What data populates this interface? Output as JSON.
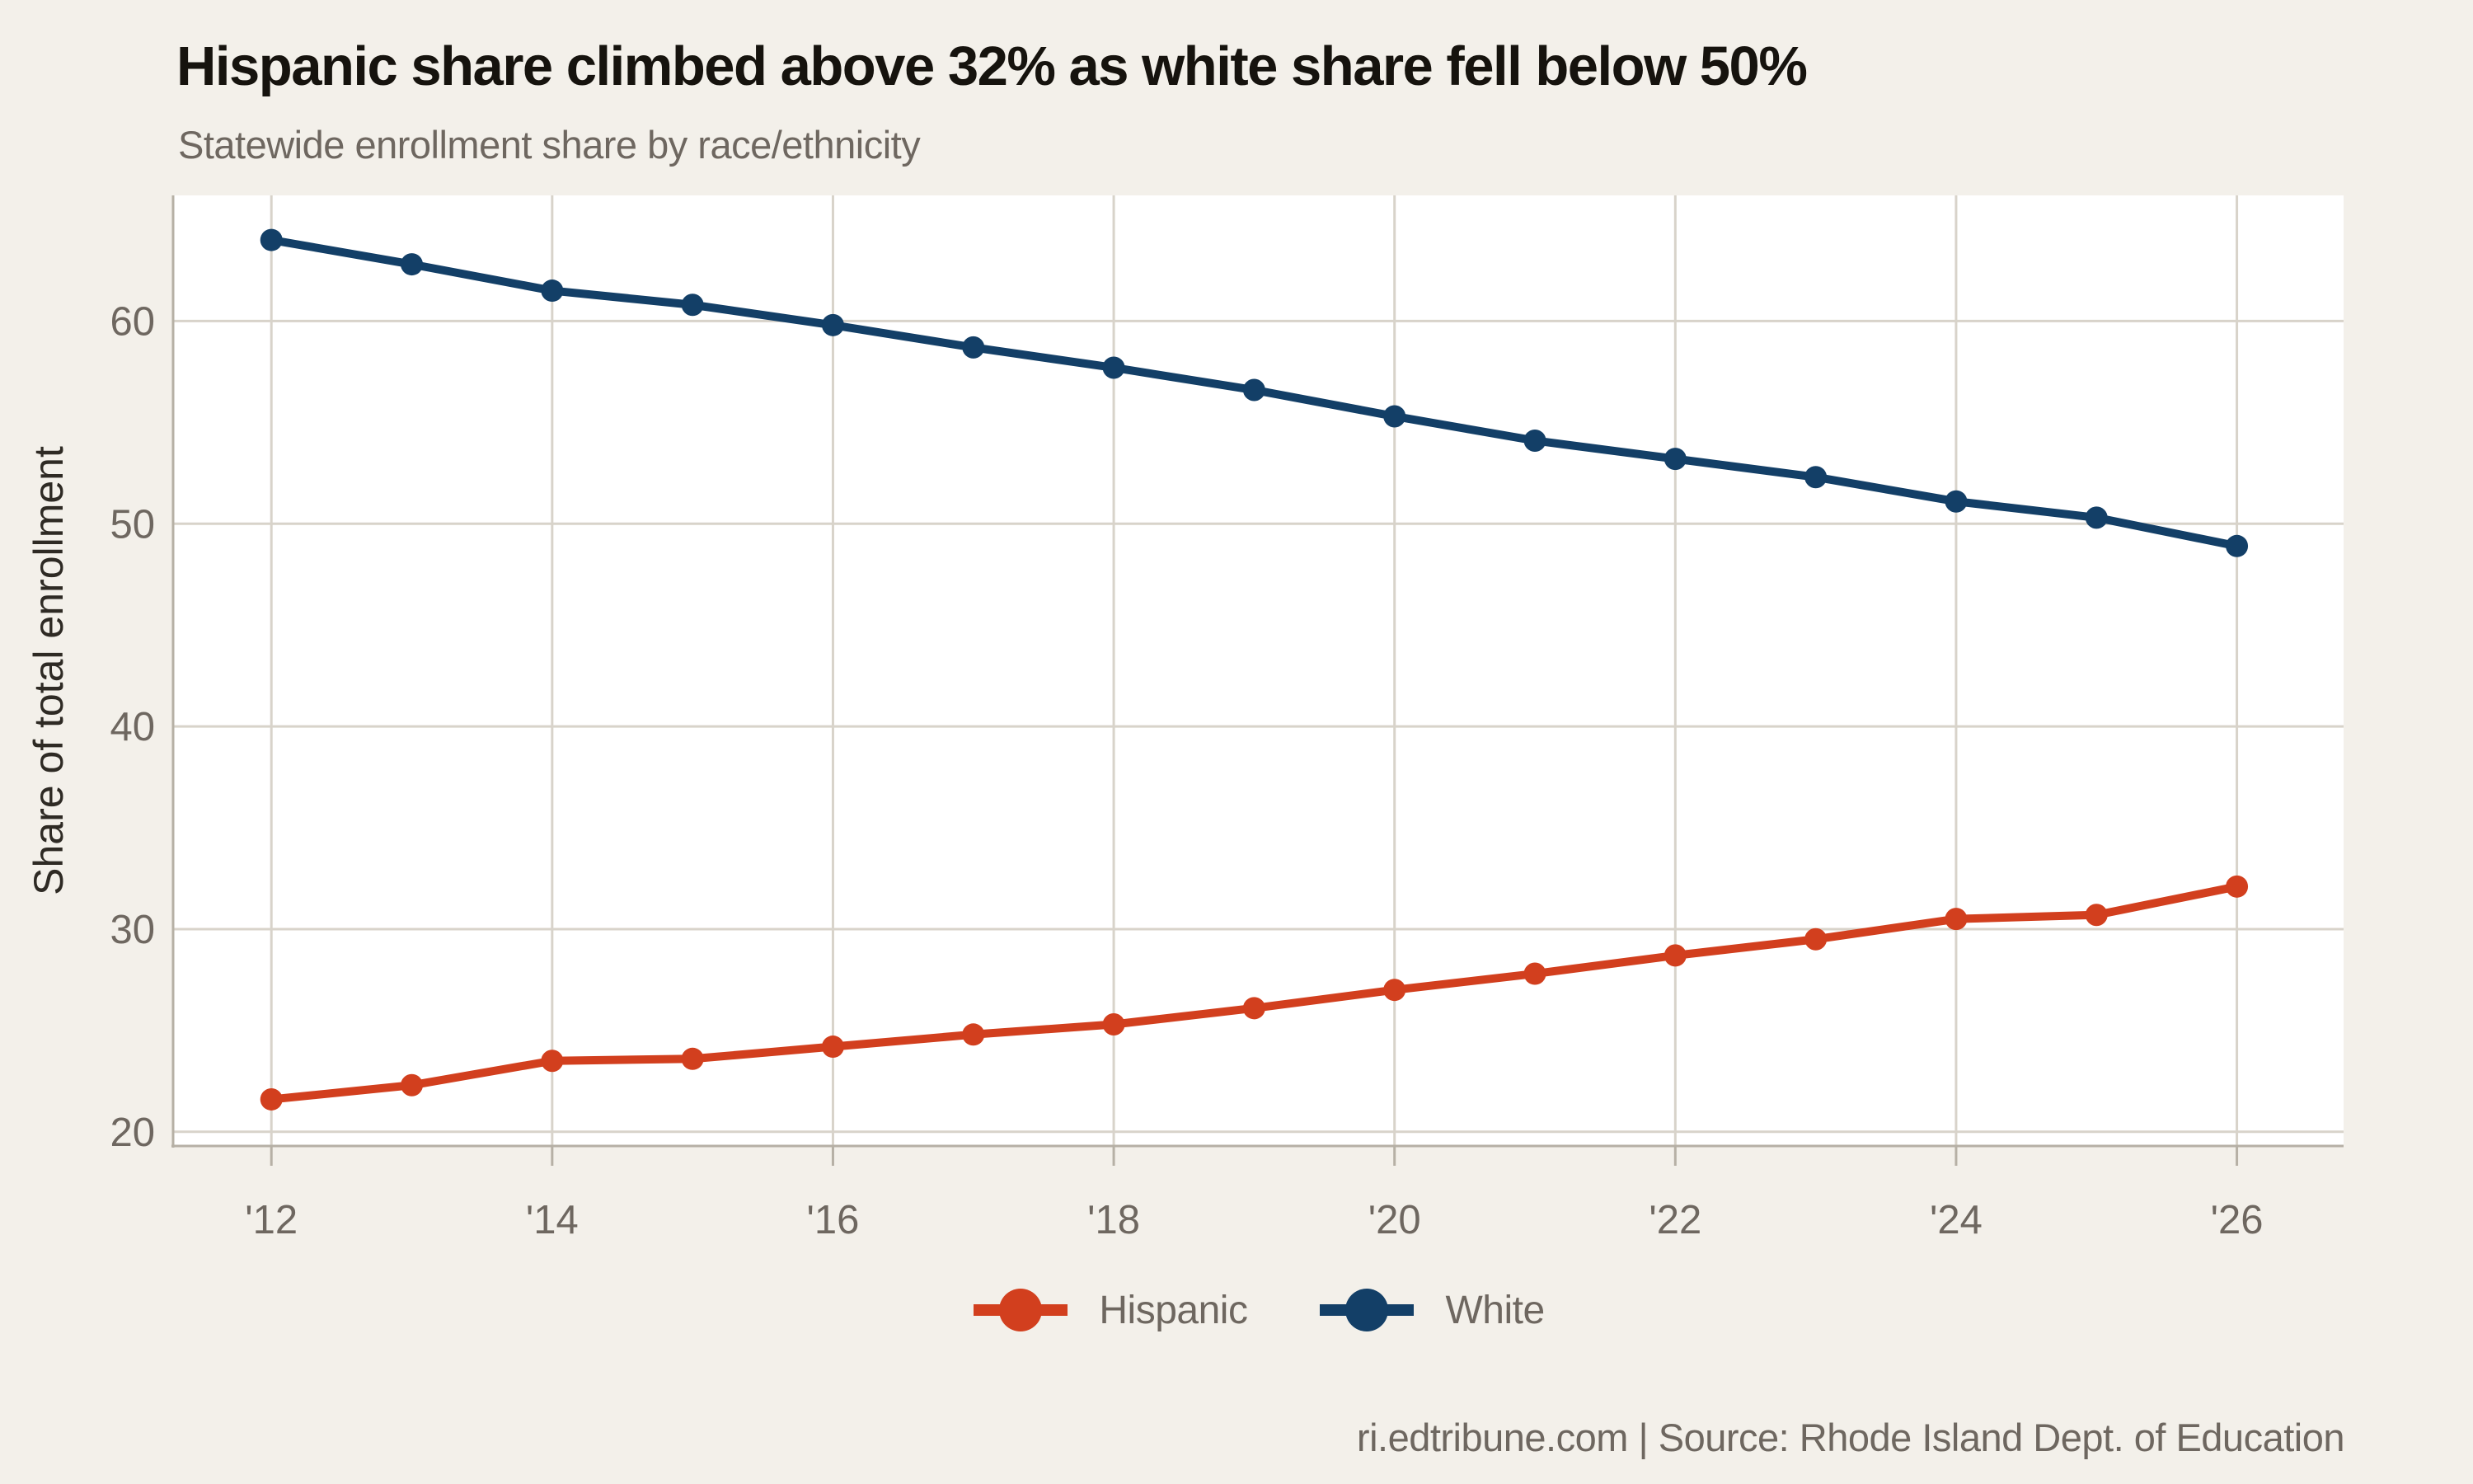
{
  "header": {
    "title": "Hispanic share climbed above 32% as white share fell below 50%",
    "subtitle": "Statewide enrollment share by race/ethnicity"
  },
  "chart_data": {
    "type": "line",
    "title": "Hispanic share climbed above 32% as white share fell below 50%",
    "subtitle": "Statewide enrollment share by race/ethnicity",
    "x": [
      2012,
      2013,
      2014,
      2015,
      2016,
      2017,
      2018,
      2019,
      2020,
      2021,
      2022,
      2023,
      2024,
      2025,
      2026
    ],
    "xticks": [
      2012,
      2014,
      2016,
      2018,
      2020,
      2022,
      2024,
      2026
    ],
    "xtick_labels": [
      "'12",
      "'14",
      "'16",
      "'18",
      "'20",
      "'22",
      "'24",
      "'26"
    ],
    "series": [
      {
        "name": "Hispanic",
        "color": "#d23f1e",
        "values": [
          21.6,
          22.3,
          23.5,
          23.6,
          24.2,
          24.8,
          25.3,
          26.1,
          27.0,
          27.8,
          28.7,
          29.5,
          30.5,
          30.7,
          32.1
        ]
      },
      {
        "name": "White",
        "color": "#133f67",
        "values": [
          64.0,
          62.8,
          61.5,
          60.8,
          59.8,
          58.7,
          57.7,
          56.6,
          55.3,
          54.1,
          53.2,
          52.3,
          51.1,
          50.3,
          48.9
        ]
      }
    ],
    "xlabel": "",
    "ylabel": "Share of total enrollment",
    "yticks": [
      20,
      30,
      40,
      50,
      60
    ],
    "ylim": [
      19.3,
      66.2
    ],
    "xlim": [
      2011.3,
      2026.76
    ],
    "grid": true,
    "legend_position": "bottom"
  },
  "footer": {
    "credit": "ri.edtribune.com | Source: Rhode Island Dept. of Education"
  },
  "colors": {
    "background": "#f3f0ea",
    "plot_background": "#ffffff",
    "gridline": "#d8d3ca",
    "axis_line": "#b6b0a5",
    "tick_text": "#6e6760",
    "axis_title_text": "#2e2a24",
    "hispanic": "#d23f1e",
    "white": "#133f67"
  }
}
